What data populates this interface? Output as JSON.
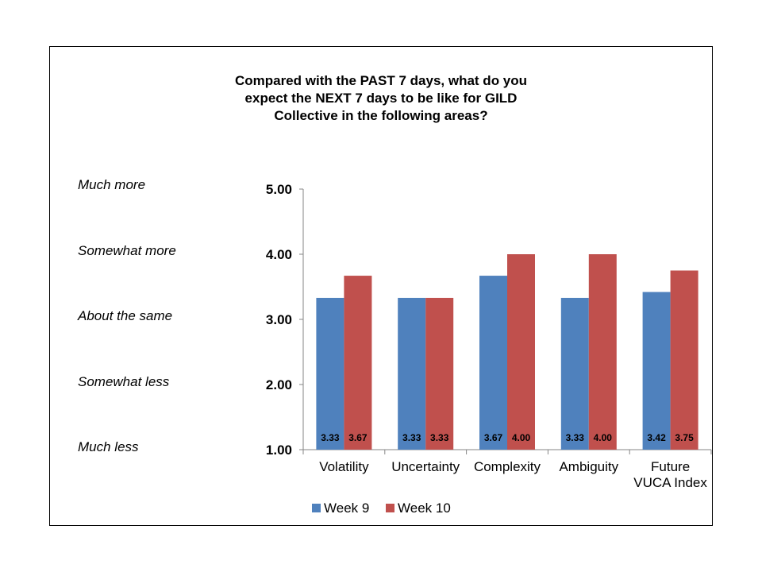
{
  "chart_data": {
    "type": "bar",
    "title": "Compared with the PAST 7 days, what do you\nexpect the NEXT 7 days to be like for GILD\nCollective in the following areas?",
    "categories": [
      "Volatility",
      "Uncertainty",
      "Complexity",
      "Ambiguity",
      "Future\nVUCA Index"
    ],
    "series": [
      {
        "name": "Week 9",
        "values": [
          3.33,
          3.33,
          3.67,
          3.33,
          3.42
        ],
        "color": "#4F81BD"
      },
      {
        "name": "Week 10",
        "values": [
          3.67,
          3.33,
          4.0,
          4.0,
          3.75
        ],
        "color": "#C0504D"
      }
    ],
    "y_ticks": [
      "1.00",
      "2.00",
      "3.00",
      "4.00",
      "5.00"
    ],
    "ylim": [
      1,
      5
    ],
    "scale_labels": [
      "Much less",
      "Somewhat less",
      "About the same",
      "Somewhat more",
      "Much more"
    ],
    "legend": "bottom",
    "grid": false,
    "data_labels_position": "inside-base"
  }
}
